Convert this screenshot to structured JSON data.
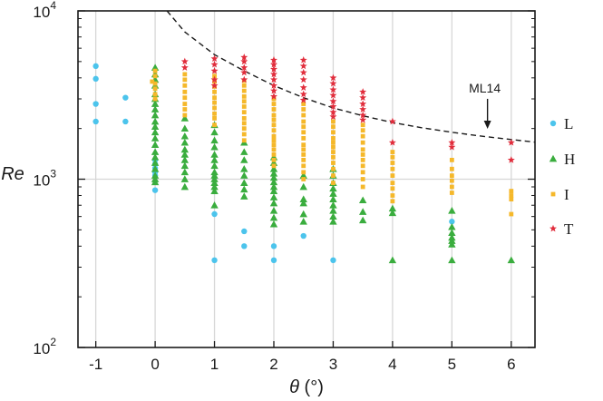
{
  "chart_data": {
    "type": "scatter",
    "title": "",
    "xlabel": "θ (°)",
    "ylabel": "Re",
    "xlim": [
      -1.3,
      6.4
    ],
    "ylim": [
      100,
      10000
    ],
    "yscale": "log",
    "grid": "vertical",
    "legend_placement": "right",
    "x_ticks": [
      -1,
      0,
      1,
      2,
      3,
      4,
      5,
      6
    ],
    "x_tick_labels": [
      "-1",
      "0",
      "1",
      "2",
      "3",
      "4",
      "5",
      "6"
    ],
    "y_ticks": [
      {
        "value": 100,
        "base": "10",
        "exp": "2"
      },
      {
        "value": 1000,
        "base": "10",
        "exp": "3"
      },
      {
        "value": 10000,
        "base": "10",
        "exp": "4"
      }
    ],
    "series": [
      {
        "name": "L",
        "marker": "circle",
        "color": "#4cc4ec",
        "points": [
          [
            -1,
            4700
          ],
          [
            -1,
            3950
          ],
          [
            -1,
            2800
          ],
          [
            -1,
            2200
          ],
          [
            -0.5,
            3050
          ],
          [
            -0.5,
            2200
          ],
          [
            0,
            1300
          ],
          [
            0,
            1230
          ],
          [
            0,
            1160
          ],
          [
            0,
            1100
          ],
          [
            0,
            1050
          ],
          [
            0,
            860
          ],
          [
            1,
            620
          ],
          [
            1,
            330
          ],
          [
            1.5,
            490
          ],
          [
            1.5,
            400
          ],
          [
            2,
            400
          ],
          [
            2,
            330
          ],
          [
            2.5,
            460
          ],
          [
            3,
            330
          ],
          [
            5,
            560
          ]
        ]
      },
      {
        "name": "H",
        "marker": "triangle",
        "color": "#3aad3e",
        "points": [
          [
            0,
            4600
          ],
          [
            0,
            4200
          ],
          [
            0,
            3900
          ],
          [
            0,
            3600
          ],
          [
            0,
            3200
          ],
          [
            0,
            3000
          ],
          [
            0,
            2800
          ],
          [
            0,
            2600
          ],
          [
            0,
            2400
          ],
          [
            0,
            2200
          ],
          [
            0,
            2050
          ],
          [
            0,
            1900
          ],
          [
            0,
            1750
          ],
          [
            0,
            1600
          ],
          [
            0,
            1450
          ],
          [
            0,
            1350
          ],
          [
            0,
            1250
          ],
          [
            0,
            1150
          ],
          [
            0,
            1050
          ],
          [
            0,
            1000
          ],
          [
            0,
            960
          ],
          [
            0.5,
            2300
          ],
          [
            0.5,
            2000
          ],
          [
            0.5,
            1800
          ],
          [
            0.5,
            1650
          ],
          [
            0.5,
            1500
          ],
          [
            0.5,
            1400
          ],
          [
            0.5,
            1300
          ],
          [
            0.5,
            1200
          ],
          [
            0.5,
            1100
          ],
          [
            0.5,
            1000
          ],
          [
            0.5,
            900
          ],
          [
            1,
            2100
          ],
          [
            1,
            1900
          ],
          [
            1,
            1700
          ],
          [
            1,
            1550
          ],
          [
            1,
            1400
          ],
          [
            1,
            1300
          ],
          [
            1,
            1200
          ],
          [
            1,
            1100
          ],
          [
            1,
            1050
          ],
          [
            1,
            1000
          ],
          [
            1,
            950
          ],
          [
            1,
            900
          ],
          [
            1,
            850
          ],
          [
            1,
            700
          ],
          [
            1.5,
            1650
          ],
          [
            1.5,
            1450
          ],
          [
            1.5,
            1300
          ],
          [
            1.5,
            1150
          ],
          [
            1.5,
            1050
          ],
          [
            1.5,
            950
          ],
          [
            1.5,
            870
          ],
          [
            1.5,
            790
          ],
          [
            2,
            1350
          ],
          [
            2,
            1250
          ],
          [
            2,
            1150
          ],
          [
            2,
            1080
          ],
          [
            2,
            1020
          ],
          [
            2,
            960
          ],
          [
            2,
            900
          ],
          [
            2,
            850
          ],
          [
            2,
            780
          ],
          [
            2,
            720
          ],
          [
            2,
            650
          ],
          [
            2,
            590
          ],
          [
            2,
            540
          ],
          [
            2.5,
            1050
          ],
          [
            2.5,
            900
          ],
          [
            2.5,
            760
          ],
          [
            2.5,
            720
          ],
          [
            2.5,
            620
          ],
          [
            2.5,
            560
          ],
          [
            3,
            1150
          ],
          [
            3,
            1050
          ],
          [
            3,
            950
          ],
          [
            3,
            880
          ],
          [
            3,
            820
          ],
          [
            3,
            760
          ],
          [
            3,
            700
          ],
          [
            3,
            650
          ],
          [
            3,
            600
          ],
          [
            3,
            560
          ],
          [
            3.5,
            750
          ],
          [
            3.5,
            640
          ],
          [
            3.5,
            570
          ],
          [
            4,
            670
          ],
          [
            4,
            630
          ],
          [
            4,
            330
          ],
          [
            5,
            650
          ],
          [
            5,
            520
          ],
          [
            5,
            480
          ],
          [
            5,
            450
          ],
          [
            5,
            430
          ],
          [
            5,
            410
          ],
          [
            5,
            330
          ],
          [
            6,
            330
          ]
        ]
      },
      {
        "name": "I",
        "marker": "square",
        "color": "#f5b82a",
        "points": [
          [
            -0.05,
            3800
          ],
          [
            0,
            4400
          ],
          [
            0,
            4100
          ],
          [
            0,
            3700
          ],
          [
            0,
            3450
          ],
          [
            0,
            3200
          ],
          [
            0,
            3000
          ],
          [
            0.5,
            4200
          ],
          [
            0.5,
            3900
          ],
          [
            0.5,
            3600
          ],
          [
            0.5,
            3300
          ],
          [
            0.5,
            3050
          ],
          [
            0.5,
            2800
          ],
          [
            0.5,
            2600
          ],
          [
            0.5,
            2400
          ],
          [
            1,
            4100
          ],
          [
            1,
            3800
          ],
          [
            1,
            3550
          ],
          [
            1,
            3300
          ],
          [
            1,
            3050
          ],
          [
            1,
            2850
          ],
          [
            1,
            2650
          ],
          [
            1,
            2450
          ],
          [
            1,
            2300
          ],
          [
            1,
            2100
          ],
          [
            1.5,
            3850
          ],
          [
            1.5,
            3600
          ],
          [
            1.5,
            3350
          ],
          [
            1.5,
            3100
          ],
          [
            1.5,
            2900
          ],
          [
            1.5,
            2700
          ],
          [
            1.5,
            2500
          ],
          [
            1.5,
            2300
          ],
          [
            1.5,
            2150
          ],
          [
            1.5,
            2000
          ],
          [
            1.5,
            1850
          ],
          [
            1.5,
            1700
          ],
          [
            2,
            3000
          ],
          [
            2,
            2800
          ],
          [
            2,
            2600
          ],
          [
            2,
            2400
          ],
          [
            2,
            2250
          ],
          [
            2,
            2100
          ],
          [
            2,
            1950
          ],
          [
            2,
            1800
          ],
          [
            2,
            1700
          ],
          [
            2,
            1600
          ],
          [
            2,
            1500
          ],
          [
            2,
            1400
          ],
          [
            2,
            1300
          ],
          [
            2,
            1200
          ],
          [
            2.5,
            2800
          ],
          [
            2.5,
            2600
          ],
          [
            2.5,
            2400
          ],
          [
            2.5,
            2200
          ],
          [
            2.5,
            2050
          ],
          [
            2.5,
            1900
          ],
          [
            2.5,
            1750
          ],
          [
            2.5,
            1600
          ],
          [
            2.5,
            1500
          ],
          [
            2.5,
            1400
          ],
          [
            2.5,
            1300
          ],
          [
            2.5,
            1200
          ],
          [
            2.5,
            1100
          ],
          [
            2.5,
            1000
          ],
          [
            3,
            2200
          ],
          [
            3,
            2050
          ],
          [
            3,
            1900
          ],
          [
            3,
            1750
          ],
          [
            3,
            1650
          ],
          [
            3,
            1550
          ],
          [
            3,
            1450
          ],
          [
            3,
            1350
          ],
          [
            3,
            1250
          ],
          [
            3,
            1150
          ],
          [
            3,
            1050
          ],
          [
            3,
            950
          ],
          [
            3.5,
            2100
          ],
          [
            3.5,
            1950
          ],
          [
            3.5,
            1800
          ],
          [
            3.5,
            1650
          ],
          [
            3.5,
            1500
          ],
          [
            3.5,
            1400
          ],
          [
            3.5,
            1300
          ],
          [
            3.5,
            1200
          ],
          [
            3.5,
            1100
          ],
          [
            3.5,
            1000
          ],
          [
            3.5,
            900
          ],
          [
            4,
            1450
          ],
          [
            4,
            1350
          ],
          [
            4,
            1250
          ],
          [
            4,
            1150
          ],
          [
            4,
            1050
          ],
          [
            4,
            950
          ],
          [
            4,
            880
          ],
          [
            4,
            800
          ],
          [
            4,
            740
          ],
          [
            5,
            1300
          ],
          [
            5,
            1150
          ],
          [
            5,
            1050
          ],
          [
            5,
            980
          ],
          [
            5,
            900
          ],
          [
            5,
            830
          ],
          [
            6,
            850
          ],
          [
            6,
            800
          ],
          [
            6,
            760
          ],
          [
            6,
            620
          ]
        ]
      },
      {
        "name": "T",
        "marker": "star",
        "color": "#e12d3c",
        "points": [
          [
            0.5,
            5000
          ],
          [
            0.5,
            4600
          ],
          [
            1,
            5200
          ],
          [
            1,
            4800
          ],
          [
            1,
            4400
          ],
          [
            1,
            3900
          ],
          [
            1,
            3600
          ],
          [
            1.5,
            5300
          ],
          [
            1.5,
            5000
          ],
          [
            1.5,
            4600
          ],
          [
            1.5,
            4300
          ],
          [
            1.5,
            3900
          ],
          [
            2,
            5100
          ],
          [
            2,
            4800
          ],
          [
            2,
            4500
          ],
          [
            2,
            4200
          ],
          [
            2,
            3900
          ],
          [
            2,
            3600
          ],
          [
            2,
            3350
          ],
          [
            2,
            3100
          ],
          [
            2.5,
            5100
          ],
          [
            2.5,
            4700
          ],
          [
            2.5,
            4300
          ],
          [
            2.5,
            3900
          ],
          [
            2.5,
            3500
          ],
          [
            2.5,
            3200
          ],
          [
            2.5,
            2950
          ],
          [
            3,
            4000
          ],
          [
            3,
            3700
          ],
          [
            3,
            3400
          ],
          [
            3,
            3150
          ],
          [
            3,
            2900
          ],
          [
            3,
            2700
          ],
          [
            3,
            2500
          ],
          [
            3,
            2350
          ],
          [
            3.5,
            3300
          ],
          [
            3.5,
            3050
          ],
          [
            3.5,
            2800
          ],
          [
            3.5,
            2600
          ],
          [
            3.5,
            2400
          ],
          [
            3.5,
            2250
          ],
          [
            4,
            2200
          ],
          [
            4,
            1650
          ],
          [
            5,
            1650
          ],
          [
            5,
            1550
          ],
          [
            6,
            1650
          ],
          [
            6,
            1300
          ]
        ]
      }
    ],
    "curve": {
      "name": "ML14",
      "style": "dashed",
      "color": "#1a1a1a",
      "points": [
        [
          0.2,
          10000
        ],
        [
          0.5,
          7500
        ],
        [
          1,
          5500
        ],
        [
          1.5,
          4400
        ],
        [
          2,
          3600
        ],
        [
          2.5,
          3050
        ],
        [
          3,
          2650
        ],
        [
          3.5,
          2380
        ],
        [
          4,
          2170
        ],
        [
          4.5,
          2020
        ],
        [
          5,
          1900
        ],
        [
          5.5,
          1800
        ],
        [
          6,
          1720
        ],
        [
          6.4,
          1660
        ]
      ]
    },
    "annotation": {
      "text": "ML14",
      "arrow_to": [
        5.6,
        1850
      ]
    }
  }
}
